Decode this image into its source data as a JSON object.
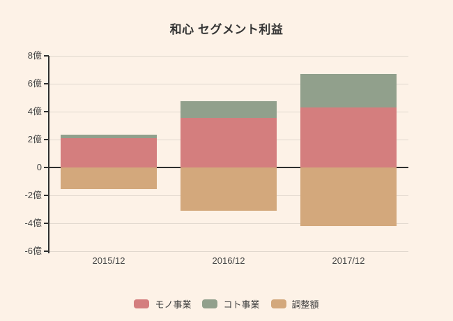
{
  "title": "和心 セグメント利益",
  "chart_data": {
    "type": "bar",
    "stacked": true,
    "title": "和心 セグメント利益",
    "categories": [
      "2015/12",
      "2016/12",
      "2017/12"
    ],
    "series": [
      {
        "name": "モノ事業",
        "color": "#d47e7e",
        "values": [
          2.1,
          3.55,
          4.3
        ]
      },
      {
        "name": "コト事業",
        "color": "#91a08c",
        "values": [
          0.25,
          1.2,
          2.4
        ]
      },
      {
        "name": "調整額",
        "color": "#d3a87c",
        "values": [
          -1.55,
          -3.1,
          -4.2
        ]
      }
    ],
    "y_axis": {
      "unit": "億",
      "max": 8,
      "min": -6,
      "tick_values": [
        8,
        6,
        4,
        2,
        0,
        -2,
        -4,
        -6
      ],
      "tick_labels": [
        "8億",
        "6億",
        "4億",
        "2億",
        "0",
        "-2億",
        "-4億",
        "-6億"
      ]
    },
    "xlabel": "",
    "ylabel": "",
    "grid": true,
    "legend_position": "bottom"
  },
  "colors": {
    "background": "#fdf2e7",
    "gridline": "#e0d7cd",
    "zero_line": "#2f2f2f",
    "axis": "#2f2f2f",
    "text": "#454545",
    "title_text": "#363636"
  }
}
